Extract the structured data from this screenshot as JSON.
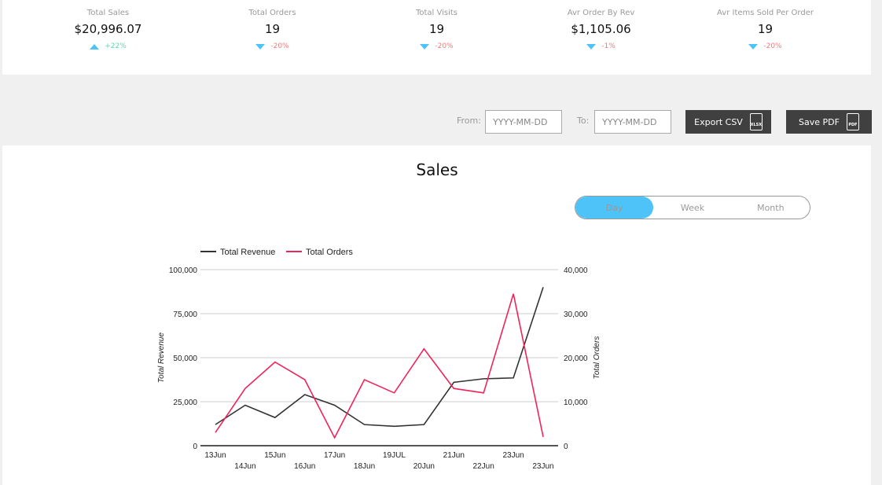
{
  "stats": [
    {
      "label": "Total Sales",
      "value": "$20,996.07",
      "direction": "up",
      "change": "+22%"
    },
    {
      "label": "Total Orders",
      "value": "19",
      "direction": "down",
      "change": "-20%"
    },
    {
      "label": "Total Visits",
      "value": "19",
      "direction": "down",
      "change": "-20%"
    },
    {
      "label": "Avr Order By Rev",
      "value": "$1,105.06",
      "direction": "down",
      "change": "-1%"
    },
    {
      "label": "Avr Items Sold Per Order",
      "value": "19",
      "direction": "down",
      "change": "-20%"
    }
  ],
  "filters": {
    "from_label": "From:",
    "from_placeholder": "YYYY-MM-DD",
    "to_label": "To:",
    "to_placeholder": "YYYY-MM-DD"
  },
  "buttons": {
    "export_csv": "Export CSV",
    "export_icon_text": "XLSX",
    "save_pdf": "Save PDF",
    "pdf_icon_text": "PDF"
  },
  "section_title": "Sales",
  "toggle": {
    "options": [
      "Day",
      "Week",
      "Month"
    ],
    "active": "Day"
  },
  "colors": {
    "revenue": "#333333",
    "orders": "#f0245a",
    "accent": "#4dc3f7"
  },
  "chart_data": {
    "type": "line",
    "x": [
      "13Jun",
      "14Jun",
      "15Jun",
      "16Jun",
      "17Jun",
      "18Jun",
      "19JUL",
      "20Jun",
      "21Jun",
      "22Jun",
      "23Jun",
      "23Jun"
    ],
    "series": [
      {
        "name": "Total Revenue",
        "axis": "left",
        "values": [
          12000,
          23000,
          16000,
          29000,
          23000,
          12000,
          11000,
          12000,
          36000,
          38000,
          38500,
          90000
        ]
      },
      {
        "name": "Total Orders",
        "axis": "right",
        "values": [
          3000,
          13000,
          19000,
          15000,
          1800,
          15000,
          12000,
          22000,
          13000,
          12000,
          34500,
          2000
        ]
      }
    ],
    "ylabel": "Total Revenue",
    "y2label": "Total Orders",
    "ylim": [
      0,
      100000
    ],
    "y2lim": [
      0,
      40000
    ],
    "yticks": [
      "0",
      "25,000",
      "50,000",
      "75,000",
      "100,000"
    ],
    "y2ticks": [
      "0",
      "10,000",
      "20,000",
      "30,000",
      "40,000"
    ],
    "legend": "top-left",
    "grid": true
  }
}
